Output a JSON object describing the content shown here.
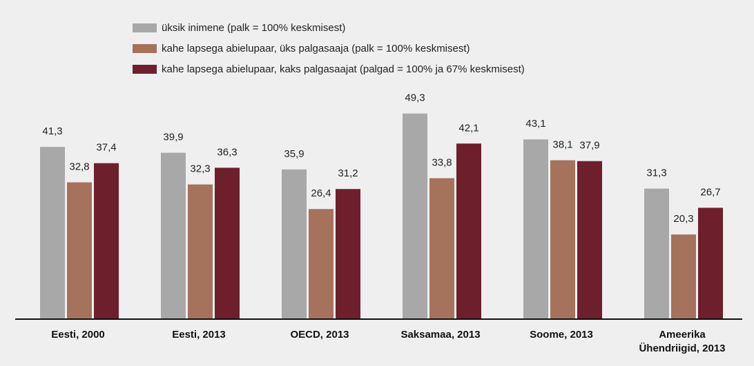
{
  "chart_data": {
    "type": "bar",
    "categories": [
      "Eesti, 2000",
      "Eesti, 2013",
      "OECD, 2013",
      "Saksamaa, 2013",
      "Soome, 2013",
      "Ameerika Ühendriigid, 2013"
    ],
    "series": [
      {
        "name": "üksik inimene (palk = 100% keskmisest)",
        "color": "#a8a8a8",
        "values": [
          41.3,
          39.9,
          35.9,
          49.3,
          43.1,
          31.3
        ],
        "value_labels": [
          "41,3",
          "39,9",
          "35,9",
          "49,3",
          "43,1",
          "31,3"
        ]
      },
      {
        "name": "kahe lapsega abielupaar, üks palgasaaja (palk = 100% keskmisest)",
        "color": "#a5725c",
        "values": [
          32.8,
          32.3,
          26.4,
          33.8,
          38.1,
          20.3
        ],
        "value_labels": [
          "32,8",
          "32,3",
          "26,4",
          "33,8",
          "38,1",
          "20,3"
        ]
      },
      {
        "name": "kahe lapsega abielupaar, kaks palgasaajat (palgad = 100% ja 67% keskmisest)",
        "color": "#6e1f2c",
        "values": [
          37.4,
          36.3,
          31.2,
          42.1,
          37.9,
          26.7
        ],
        "value_labels": [
          "37,4",
          "36,3",
          "31,2",
          "42,1",
          "37,9",
          "26,7"
        ]
      }
    ]
  }
}
